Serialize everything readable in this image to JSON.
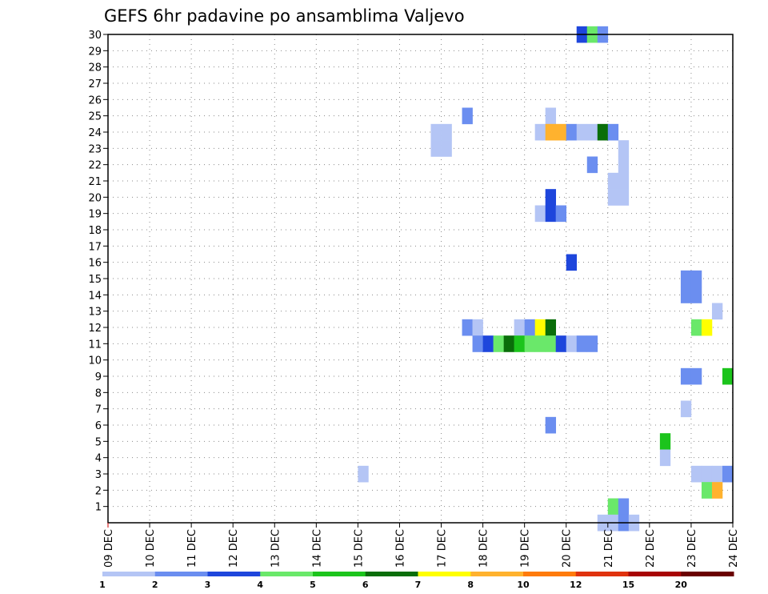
{
  "chart_data": {
    "type": "heatmap",
    "title": "GEFS 6hr padavine po ansamblima Valjevo",
    "y_ticks": [
      "1",
      "2",
      "3",
      "4",
      "5",
      "6",
      "7",
      "8",
      "9",
      "10",
      "11",
      "12",
      "13",
      "14",
      "15",
      "16",
      "17",
      "18",
      "19",
      "20",
      "21",
      "22",
      "23",
      "24",
      "25",
      "26",
      "27",
      "28",
      "29",
      "30"
    ],
    "x_ticks": [
      "09 DEC",
      "10 DEC",
      "11 DEC",
      "12 DEC",
      "13 DEC",
      "14 DEC",
      "15 DEC",
      "16 DEC",
      "17 DEC",
      "18 DEC",
      "19 DEC",
      "20 DEC",
      "21 DEC",
      "22 DEC",
      "23 DEC",
      "24 DEC"
    ],
    "x_range": [
      "09 DEC 00Z",
      "24 DEC 00Z"
    ],
    "y_range": [
      0,
      30
    ],
    "grid": true,
    "legend": {
      "colors": [
        "#b4c5f5",
        "#6b8ef0",
        "#1e46dc",
        "#6ae86a",
        "#1cc41c",
        "#0a6e0a",
        "#ffff00",
        "#ffb22e",
        "#ff7b0b",
        "#e0320e",
        "#a80505",
        "#6a0000"
      ],
      "labels": [
        "1",
        "2",
        "3",
        "4",
        "5",
        "6",
        "7",
        "8",
        "10",
        "12",
        "15",
        "20"
      ]
    },
    "cells": [
      {
        "member": 30,
        "time": "20 DEC 06Z",
        "color": "#1e46dc"
      },
      {
        "member": 30,
        "time": "20 DEC 12Z",
        "color": "#6ae86a"
      },
      {
        "member": 30,
        "time": "20 DEC 18Z",
        "color": "#6b8ef0"
      },
      {
        "member": 25,
        "time": "17 DEC 12Z",
        "color": "#6b8ef0"
      },
      {
        "member": 25,
        "time": "19 DEC 12Z",
        "color": "#b4c5f5"
      },
      {
        "member": 24,
        "time": "16 DEC 18Z",
        "color": "#b4c5f5"
      },
      {
        "member": 24,
        "time": "17 DEC 00Z",
        "color": "#b4c5f5"
      },
      {
        "member": 24,
        "time": "19 DEC 06Z",
        "color": "#b4c5f5"
      },
      {
        "member": 24,
        "time": "19 DEC 12Z",
        "color": "#ffb22e"
      },
      {
        "member": 24,
        "time": "19 DEC 18Z",
        "color": "#ffb22e"
      },
      {
        "member": 24,
        "time": "20 DEC 00Z",
        "color": "#6b8ef0"
      },
      {
        "member": 24,
        "time": "20 DEC 06Z",
        "color": "#b4c5f5"
      },
      {
        "member": 24,
        "time": "20 DEC 12Z",
        "color": "#b4c5f5"
      },
      {
        "member": 24,
        "time": "20 DEC 18Z",
        "color": "#0a6e0a"
      },
      {
        "member": 24,
        "time": "21 DEC 00Z",
        "color": "#6b8ef0"
      },
      {
        "member": 23,
        "time": "16 DEC 18Z",
        "color": "#b4c5f5"
      },
      {
        "member": 23,
        "time": "17 DEC 00Z",
        "color": "#b4c5f5"
      },
      {
        "member": 23,
        "time": "21 DEC 06Z",
        "color": "#b4c5f5"
      },
      {
        "member": 22,
        "time": "20 DEC 12Z",
        "color": "#6b8ef0"
      },
      {
        "member": 22,
        "time": "21 DEC 06Z",
        "color": "#b4c5f5"
      },
      {
        "member": 21,
        "time": "21 DEC 00Z",
        "color": "#b4c5f5"
      },
      {
        "member": 21,
        "time": "21 DEC 06Z",
        "color": "#b4c5f5"
      },
      {
        "member": 20,
        "time": "19 DEC 12Z",
        "color": "#1e46dc"
      },
      {
        "member": 20,
        "time": "21 DEC 00Z",
        "color": "#b4c5f5"
      },
      {
        "member": 20,
        "time": "21 DEC 06Z",
        "color": "#b4c5f5"
      },
      {
        "member": 19,
        "time": "19 DEC 06Z",
        "color": "#b4c5f5"
      },
      {
        "member": 19,
        "time": "19 DEC 12Z",
        "color": "#1e46dc"
      },
      {
        "member": 19,
        "time": "19 DEC 18Z",
        "color": "#6b8ef0"
      },
      {
        "member": 16,
        "time": "20 DEC 00Z",
        "color": "#1e46dc"
      },
      {
        "member": 15,
        "time": "22 DEC 18Z",
        "color": "#6b8ef0"
      },
      {
        "member": 15,
        "time": "23 DEC 00Z",
        "color": "#6b8ef0"
      },
      {
        "member": 14,
        "time": "22 DEC 18Z",
        "color": "#6b8ef0"
      },
      {
        "member": 14,
        "time": "23 DEC 00Z",
        "color": "#6b8ef0"
      },
      {
        "member": 13,
        "time": "23 DEC 12Z",
        "color": "#b4c5f5"
      },
      {
        "member": 12,
        "time": "17 DEC 12Z",
        "color": "#6b8ef0"
      },
      {
        "member": 12,
        "time": "17 DEC 18Z",
        "color": "#b4c5f5"
      },
      {
        "member": 12,
        "time": "18 DEC 18Z",
        "color": "#b4c5f5"
      },
      {
        "member": 12,
        "time": "19 DEC 00Z",
        "color": "#6b8ef0"
      },
      {
        "member": 12,
        "time": "19 DEC 06Z",
        "color": "#ffff00"
      },
      {
        "member": 12,
        "time": "19 DEC 12Z",
        "color": "#0a6e0a"
      },
      {
        "member": 12,
        "time": "23 DEC 00Z",
        "color": "#6ae86a"
      },
      {
        "member": 12,
        "time": "23 DEC 06Z",
        "color": "#ffff00"
      },
      {
        "member": 11,
        "time": "17 DEC 18Z",
        "color": "#6b8ef0"
      },
      {
        "member": 11,
        "time": "18 DEC 00Z",
        "color": "#1e46dc"
      },
      {
        "member": 11,
        "time": "18 DEC 06Z",
        "color": "#6ae86a"
      },
      {
        "member": 11,
        "time": "18 DEC 12Z",
        "color": "#0a6e0a"
      },
      {
        "member": 11,
        "time": "18 DEC 18Z",
        "color": "#1cc41c"
      },
      {
        "member": 11,
        "time": "19 DEC 00Z",
        "color": "#6ae86a"
      },
      {
        "member": 11,
        "time": "19 DEC 06Z",
        "color": "#6ae86a"
      },
      {
        "member": 11,
        "time": "19 DEC 12Z",
        "color": "#6ae86a"
      },
      {
        "member": 11,
        "time": "19 DEC 18Z",
        "color": "#1e46dc"
      },
      {
        "member": 11,
        "time": "20 DEC 00Z",
        "color": "#b4c5f5"
      },
      {
        "member": 11,
        "time": "20 DEC 06Z",
        "color": "#6b8ef0"
      },
      {
        "member": 11,
        "time": "20 DEC 12Z",
        "color": "#6b8ef0"
      },
      {
        "member": 9,
        "time": "22 DEC 18Z",
        "color": "#6b8ef0"
      },
      {
        "member": 9,
        "time": "23 DEC 00Z",
        "color": "#6b8ef0"
      },
      {
        "member": 9,
        "time": "23 DEC 18Z",
        "color": "#1cc41c"
      },
      {
        "member": 7,
        "time": "22 DEC 18Z",
        "color": "#b4c5f5"
      },
      {
        "member": 6,
        "time": "19 DEC 12Z",
        "color": "#6b8ef0"
      },
      {
        "member": 5,
        "time": "22 DEC 06Z",
        "color": "#1cc41c"
      },
      {
        "member": 4,
        "time": "22 DEC 06Z",
        "color": "#b4c5f5"
      },
      {
        "member": 3,
        "time": "15 DEC 00Z",
        "color": "#b4c5f5"
      },
      {
        "member": 3,
        "time": "23 DEC 00Z",
        "color": "#b4c5f5"
      },
      {
        "member": 3,
        "time": "23 DEC 06Z",
        "color": "#b4c5f5"
      },
      {
        "member": 3,
        "time": "23 DEC 12Z",
        "color": "#b4c5f5"
      },
      {
        "member": 3,
        "time": "23 DEC 18Z",
        "color": "#6b8ef0"
      },
      {
        "member": 2,
        "time": "23 DEC 06Z",
        "color": "#6ae86a"
      },
      {
        "member": 2,
        "time": "23 DEC 12Z",
        "color": "#ffb22e"
      },
      {
        "member": 1,
        "time": "21 DEC 00Z",
        "color": "#6ae86a"
      },
      {
        "member": 1,
        "time": "21 DEC 06Z",
        "color": "#6b8ef0"
      },
      {
        "member": 0,
        "time": "20 DEC 18Z",
        "color": "#b4c5f5"
      },
      {
        "member": 0,
        "time": "21 DEC 00Z",
        "color": "#b4c5f5"
      },
      {
        "member": 0,
        "time": "21 DEC 06Z",
        "color": "#6b8ef0"
      },
      {
        "member": 0,
        "time": "21 DEC 12Z",
        "color": "#b4c5f5"
      }
    ]
  }
}
